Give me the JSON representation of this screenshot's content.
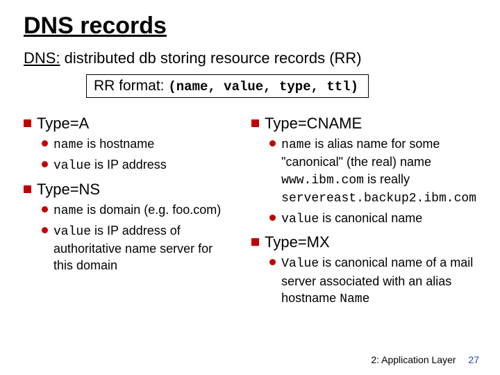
{
  "title": "DNS records",
  "subtitle_u": "DNS:",
  "subtitle_rest": " distributed db storing resource records (RR)",
  "format_label": "RR format:",
  "format_tuple": "(name, value, type, ttl)",
  "left": {
    "a_title": "Type=A",
    "a_b1_pre": "",
    "a_b1_mono": "name",
    "a_b1_post": " is hostname",
    "a_b2_pre": "",
    "a_b2_mono": "value",
    "a_b2_post": " is IP address",
    "ns_title": "Type=NS",
    "ns_b1_pre": "",
    "ns_b1_mono": "name",
    "ns_b1_post": " is domain (e.g. foo.com)",
    "ns_b2_pre": "",
    "ns_b2_mono": "value",
    "ns_b2_post": " is IP address of authoritative name server for this domain"
  },
  "right": {
    "cn_title": "Type=CNAME",
    "cn_b1_pre1": "",
    "cn_b1_mono1": "name",
    "cn_b1_mid1": " is alias name for some \"canonical\" (the real) name",
    "cn_b1_mono2": "www.ibm.com",
    "cn_b1_mid2": " is really ",
    "cn_b1_mono3": "servereast.backup2.ibm.com",
    "cn_b2_mono": "value",
    "cn_b2_post": " is canonical name",
    "mx_title": "Type=MX",
    "mx_b1_mono1": "Value",
    "mx_b1_mid": " is canonical name of a mail server associated with an alias hostname ",
    "mx_b1_mono2": "Name"
  },
  "footer_text": "2: Application Layer",
  "page_num": "27",
  "colors": {
    "accent": "#c00000",
    "page_num": "#1f3fbf",
    "bg": "#ffffff",
    "text": "#000000"
  }
}
